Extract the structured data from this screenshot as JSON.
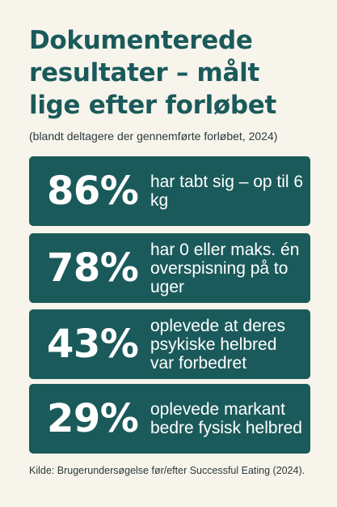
{
  "header": {
    "title_line1": "Dokumenterede",
    "title_line2": "resultater – målt",
    "title_line3": "lige efter forløbet",
    "subtitle": "(blandt deltagere der gennemførte forløbet, 2024)"
  },
  "stats": [
    {
      "percent": "86%",
      "text": "har tabt sig – op til 6 kg"
    },
    {
      "percent": "78%",
      "text": "har 0 eller maks. én overspisning på to uger"
    },
    {
      "percent": "43%",
      "text": "oplevede at deres psykiske helbred var forbedret"
    },
    {
      "percent": "29%",
      "text": "oplevede markant bedre fysisk helbred"
    }
  ],
  "footer": {
    "source": "Kilde: Brugerundersøgelse før/efter Successful Eating (2024)."
  },
  "colors": {
    "background": "#f7f4ec",
    "accent": "#1b5a5b",
    "title": "#1a5a5a"
  }
}
